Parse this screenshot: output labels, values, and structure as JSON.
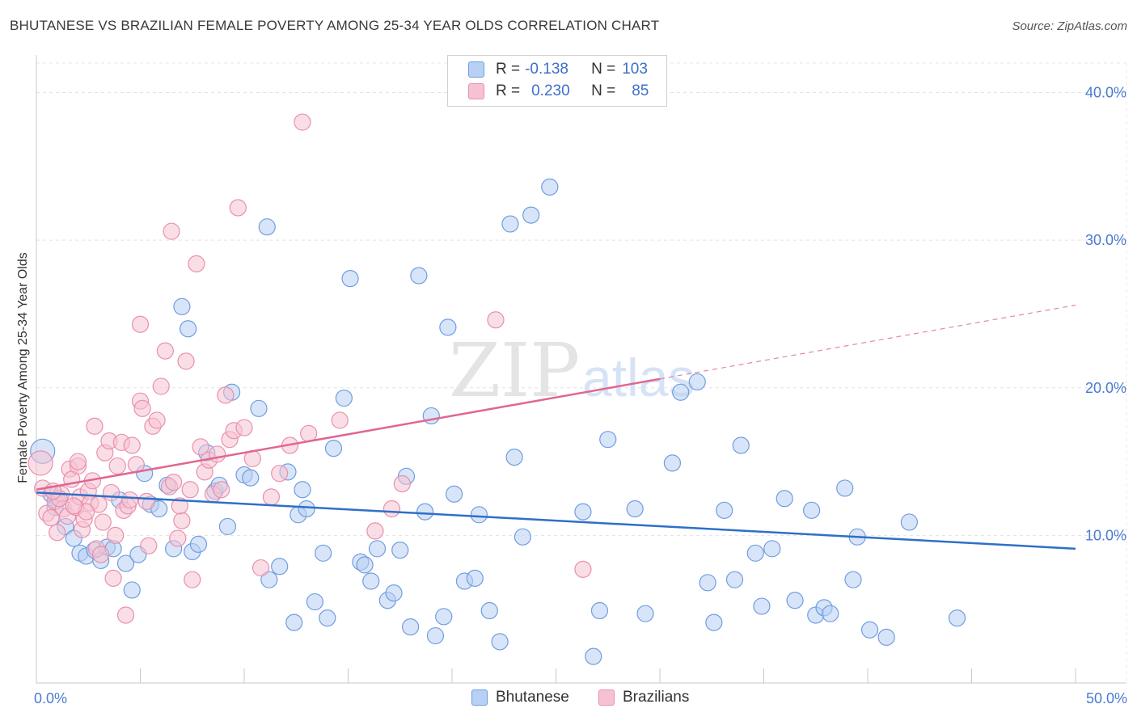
{
  "title": "BHUTANESE VS BRAZILIAN FEMALE POVERTY AMONG 25-34 YEAR OLDS CORRELATION CHART",
  "source": "Source: ZipAtlas.com",
  "watermark": {
    "zip": "ZIP",
    "atlas": "atlas"
  },
  "legend_stats": [
    {
      "r_label": "R =",
      "r_value": "-0.138",
      "n_label": "N =",
      "n_value": "103"
    },
    {
      "r_label": "R =",
      "r_value": "0.230",
      "n_label": "N =",
      "n_value": "85"
    }
  ],
  "colors": {
    "bhutanese_fill": "#b8d0f3",
    "bhutanese_stroke": "#6f9de0",
    "bhutanese_line": "#2f6fc9",
    "brazilians_fill": "#f6c2d2",
    "brazilians_stroke": "#e98fad",
    "brazilians_line": "#e06690",
    "tick_text": "#4a7bd0"
  },
  "chart_data": {
    "type": "scatter",
    "title": "BHUTANESE VS BRAZILIAN FEMALE POVERTY AMONG 25-34 YEAR OLDS CORRELATION CHART",
    "xlabel": "",
    "ylabel": "Female Poverty Among 25-34 Year Olds",
    "xlim": [
      0,
      50
    ],
    "ylim": [
      0,
      42
    ],
    "x_tick_labels": [
      "0.0%",
      "50.0%"
    ],
    "y_ticks": [
      10,
      20,
      30,
      40
    ],
    "y_tick_labels": [
      "10.0%",
      "20.0%",
      "30.0%",
      "40.0%"
    ],
    "grid": true,
    "legend_position": "bottom",
    "series": [
      {
        "name": "Bhutanese",
        "trend": {
          "x": [
            0,
            50
          ],
          "y": [
            12.9,
            9.1
          ]
        },
        "points": [
          [
            0.3,
            15.7
          ],
          [
            0.7,
            12.8
          ],
          [
            1.0,
            12.4
          ],
          [
            0.9,
            11.9
          ],
          [
            1.4,
            10.6
          ],
          [
            1.8,
            9.8
          ],
          [
            2.1,
            8.8
          ],
          [
            2.4,
            8.6
          ],
          [
            2.8,
            9.0
          ],
          [
            3.1,
            8.3
          ],
          [
            3.4,
            9.2
          ],
          [
            3.7,
            9.1
          ],
          [
            4.0,
            12.4
          ],
          [
            4.3,
            8.1
          ],
          [
            4.6,
            6.3
          ],
          [
            4.9,
            8.7
          ],
          [
            5.2,
            14.2
          ],
          [
            5.5,
            12.1
          ],
          [
            5.9,
            11.8
          ],
          [
            6.3,
            13.4
          ],
          [
            6.6,
            9.1
          ],
          [
            7.0,
            25.5
          ],
          [
            7.3,
            24.0
          ],
          [
            7.5,
            8.9
          ],
          [
            7.8,
            9.4
          ],
          [
            8.2,
            15.6
          ],
          [
            8.6,
            13.0
          ],
          [
            8.8,
            13.4
          ],
          [
            9.2,
            10.6
          ],
          [
            9.4,
            19.7
          ],
          [
            10.0,
            14.1
          ],
          [
            10.3,
            13.9
          ],
          [
            10.7,
            18.6
          ],
          [
            11.1,
            30.9
          ],
          [
            11.2,
            7.0
          ],
          [
            11.7,
            7.9
          ],
          [
            12.1,
            14.3
          ],
          [
            12.4,
            4.1
          ],
          [
            12.6,
            11.4
          ],
          [
            12.8,
            13.1
          ],
          [
            13.0,
            11.8
          ],
          [
            13.4,
            5.5
          ],
          [
            13.8,
            8.8
          ],
          [
            14.0,
            4.4
          ],
          [
            14.3,
            15.9
          ],
          [
            14.8,
            19.3
          ],
          [
            15.1,
            27.4
          ],
          [
            15.6,
            8.2
          ],
          [
            15.8,
            8.0
          ],
          [
            16.1,
            6.9
          ],
          [
            16.4,
            9.1
          ],
          [
            16.9,
            5.6
          ],
          [
            17.2,
            6.1
          ],
          [
            17.5,
            9.0
          ],
          [
            17.8,
            14.0
          ],
          [
            18.0,
            3.8
          ],
          [
            18.4,
            27.6
          ],
          [
            18.7,
            11.6
          ],
          [
            19.0,
            18.1
          ],
          [
            19.2,
            3.2
          ],
          [
            19.6,
            4.5
          ],
          [
            19.8,
            24.1
          ],
          [
            20.1,
            12.8
          ],
          [
            20.6,
            6.9
          ],
          [
            21.1,
            7.1
          ],
          [
            21.3,
            11.4
          ],
          [
            21.8,
            4.9
          ],
          [
            22.3,
            2.8
          ],
          [
            22.8,
            31.1
          ],
          [
            23.0,
            15.3
          ],
          [
            23.4,
            9.9
          ],
          [
            23.8,
            31.7
          ],
          [
            24.7,
            33.6
          ],
          [
            26.3,
            11.6
          ],
          [
            26.8,
            1.8
          ],
          [
            27.1,
            4.9
          ],
          [
            27.5,
            16.5
          ],
          [
            28.8,
            11.8
          ],
          [
            29.3,
            4.7
          ],
          [
            30.6,
            14.9
          ],
          [
            31.0,
            19.7
          ],
          [
            31.8,
            20.4
          ],
          [
            32.3,
            6.8
          ],
          [
            32.6,
            4.1
          ],
          [
            33.1,
            11.7
          ],
          [
            33.6,
            7.0
          ],
          [
            33.9,
            16.1
          ],
          [
            34.6,
            8.8
          ],
          [
            34.9,
            5.2
          ],
          [
            35.4,
            9.1
          ],
          [
            36.0,
            12.5
          ],
          [
            36.5,
            5.6
          ],
          [
            37.3,
            11.7
          ],
          [
            37.5,
            4.6
          ],
          [
            37.9,
            5.1
          ],
          [
            38.2,
            4.7
          ],
          [
            38.9,
            13.2
          ],
          [
            39.3,
            7.0
          ],
          [
            39.5,
            9.9
          ],
          [
            40.1,
            3.6
          ],
          [
            40.9,
            3.1
          ],
          [
            42.0,
            10.9
          ],
          [
            44.3,
            4.4
          ]
        ]
      },
      {
        "name": "Brazilians",
        "trend": {
          "x": [
            0,
            30
          ],
          "y": [
            13.1,
            20.6
          ]
        },
        "trend_dashed": {
          "x": [
            30,
            50
          ],
          "y": [
            20.6,
            25.6
          ]
        },
        "points": [
          [
            0.2,
            14.9
          ],
          [
            0.3,
            13.2
          ],
          [
            0.5,
            11.5
          ],
          [
            0.7,
            11.2
          ],
          [
            0.9,
            12.3
          ],
          [
            1.0,
            10.2
          ],
          [
            1.2,
            12.8
          ],
          [
            1.3,
            11.8
          ],
          [
            1.5,
            11.3
          ],
          [
            1.6,
            14.5
          ],
          [
            1.7,
            13.8
          ],
          [
            1.9,
            11.9
          ],
          [
            2.0,
            14.7
          ],
          [
            2.1,
            12.6
          ],
          [
            2.2,
            10.4
          ],
          [
            2.3,
            11.1
          ],
          [
            2.5,
            13.0
          ],
          [
            2.6,
            12.2
          ],
          [
            2.7,
            13.7
          ],
          [
            2.9,
            9.1
          ],
          [
            3.1,
            8.7
          ],
          [
            3.2,
            10.9
          ],
          [
            3.3,
            15.6
          ],
          [
            3.5,
            16.4
          ],
          [
            3.6,
            12.9
          ],
          [
            3.8,
            10.0
          ],
          [
            3.9,
            14.7
          ],
          [
            4.1,
            16.3
          ],
          [
            4.2,
            11.7
          ],
          [
            4.4,
            12.0
          ],
          [
            4.6,
            16.1
          ],
          [
            4.8,
            14.8
          ],
          [
            5.0,
            19.1
          ],
          [
            5.1,
            18.6
          ],
          [
            5.3,
            12.3
          ],
          [
            5.4,
            9.3
          ],
          [
            5.6,
            17.4
          ],
          [
            5.8,
            17.8
          ],
          [
            6.0,
            20.1
          ],
          [
            6.2,
            22.5
          ],
          [
            6.4,
            13.3
          ],
          [
            6.5,
            30.6
          ],
          [
            6.6,
            13.6
          ],
          [
            6.8,
            9.8
          ],
          [
            7.0,
            11.0
          ],
          [
            7.2,
            21.8
          ],
          [
            7.4,
            13.1
          ],
          [
            7.5,
            7.0
          ],
          [
            7.7,
            28.4
          ],
          [
            7.9,
            16.0
          ],
          [
            8.1,
            14.3
          ],
          [
            8.3,
            15.1
          ],
          [
            8.5,
            12.8
          ],
          [
            8.7,
            15.5
          ],
          [
            8.9,
            13.1
          ],
          [
            9.1,
            19.5
          ],
          [
            9.3,
            16.5
          ],
          [
            9.5,
            17.1
          ],
          [
            9.7,
            32.2
          ],
          [
            10.0,
            17.3
          ],
          [
            10.4,
            15.2
          ],
          [
            10.8,
            7.8
          ],
          [
            11.3,
            12.6
          ],
          [
            11.7,
            14.2
          ],
          [
            12.2,
            16.1
          ],
          [
            12.8,
            38.0
          ],
          [
            13.1,
            16.9
          ],
          [
            14.6,
            17.8
          ],
          [
            16.3,
            10.3
          ],
          [
            17.1,
            11.8
          ],
          [
            17.6,
            13.5
          ],
          [
            22.1,
            24.6
          ],
          [
            26.3,
            7.7
          ],
          [
            3.7,
            7.1
          ],
          [
            4.3,
            4.6
          ],
          [
            5.0,
            24.3
          ],
          [
            2.8,
            17.4
          ],
          [
            3.0,
            12.1
          ],
          [
            1.1,
            12.5
          ],
          [
            0.8,
            13.0
          ],
          [
            4.5,
            12.4
          ],
          [
            6.9,
            12.0
          ],
          [
            2.4,
            11.6
          ],
          [
            1.8,
            12.0
          ],
          [
            2.0,
            15.0
          ]
        ]
      }
    ]
  }
}
